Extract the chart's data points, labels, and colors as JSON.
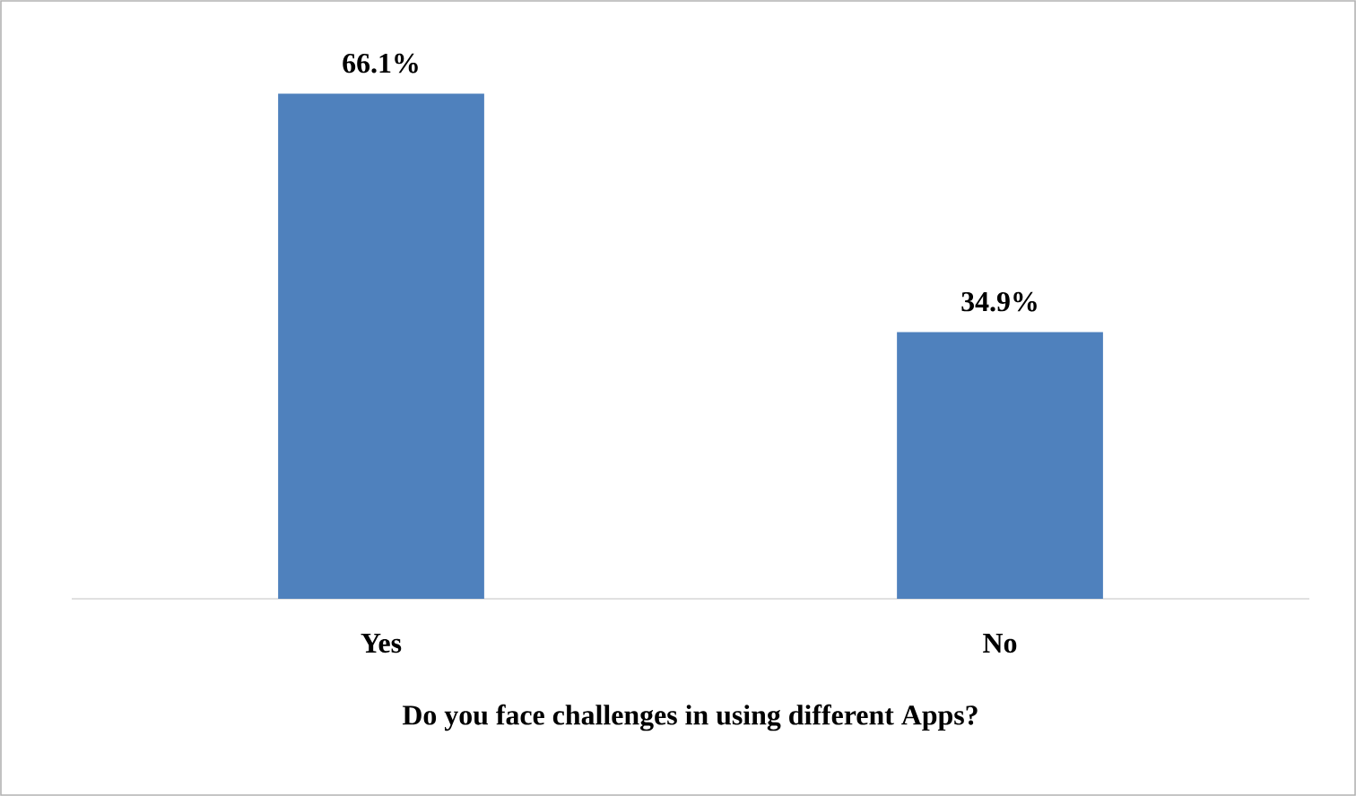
{
  "chart_data": {
    "type": "bar",
    "xlabel": "Do you face challenges in using different Apps?",
    "categories": [
      "Yes",
      "No"
    ],
    "values": [
      66.1,
      34.9
    ],
    "value_labels": [
      "66.1%",
      "34.9%"
    ],
    "color": "#4f81bd"
  }
}
